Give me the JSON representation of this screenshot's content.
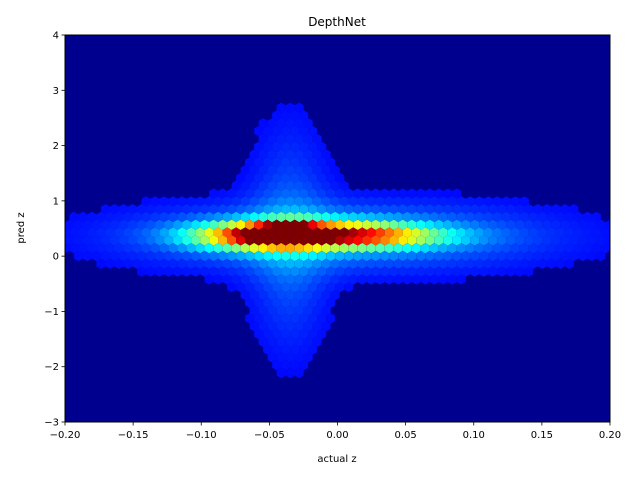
{
  "chart_data": {
    "type": "heatmap",
    "subtype": "hexbin",
    "title": "DepthNet",
    "xlabel": "actual z",
    "ylabel": "pred z",
    "xlim": [
      -0.2,
      0.2
    ],
    "ylim": [
      -3,
      4
    ],
    "x_ticks": [
      -0.2,
      -0.15,
      -0.1,
      -0.05,
      0.0,
      0.05,
      0.1,
      0.15,
      0.2
    ],
    "x_tick_labels": [
      "−0.20",
      "−0.15",
      "−0.10",
      "−0.05",
      "0.00",
      "0.05",
      "0.10",
      "0.15",
      "0.20"
    ],
    "y_ticks": [
      -3,
      -2,
      -1,
      0,
      1,
      2,
      3,
      4
    ],
    "y_tick_labels": [
      "−3",
      "−2",
      "−1",
      "0",
      "1",
      "2",
      "3",
      "4"
    ],
    "colormap": "jet",
    "background_color": "#00008f",
    "grid": false,
    "density_blobs": [
      {
        "x": -0.035,
        "y": 0.45,
        "sx": 0.008,
        "sy": 0.07,
        "weight": 1.0
      },
      {
        "x": -0.04,
        "y": 0.4,
        "sx": 0.018,
        "sy": 0.12,
        "weight": 0.8
      },
      {
        "x": -0.02,
        "y": 0.4,
        "sx": 0.05,
        "sy": 0.17,
        "weight": 0.55
      },
      {
        "x": 0.02,
        "y": 0.35,
        "sx": 0.045,
        "sy": 0.14,
        "weight": 0.32
      },
      {
        "x": -0.07,
        "y": 0.35,
        "sx": 0.03,
        "sy": 0.17,
        "weight": 0.32
      },
      {
        "x": 0.0,
        "y": 0.35,
        "sx": 0.1,
        "sy": 0.4,
        "weight": 0.2
      },
      {
        "x": -0.035,
        "y": 0.3,
        "sx": 0.02,
        "sy": 1.3,
        "weight": 0.12
      }
    ]
  }
}
